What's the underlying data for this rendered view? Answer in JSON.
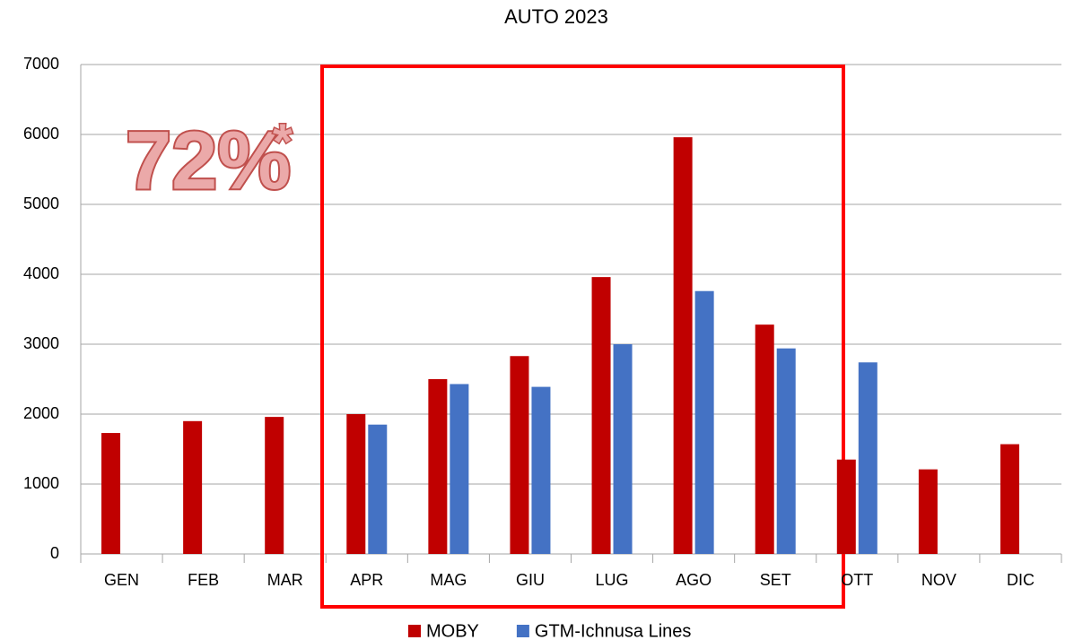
{
  "chart_data": {
    "type": "bar",
    "title": "AUTO 2023",
    "categories": [
      "GEN",
      "FEB",
      "MAR",
      "APR",
      "MAG",
      "GIU",
      "LUG",
      "AGO",
      "SET",
      "OTT",
      "NOV",
      "DIC"
    ],
    "series": [
      {
        "name": "MOBY",
        "color": "#c00000",
        "values": [
          1730,
          1900,
          1960,
          2000,
          2500,
          2830,
          3960,
          5960,
          3280,
          1350,
          1210,
          1570
        ]
      },
      {
        "name": "GTM-Ichnusa Lines",
        "color": "#4472c4",
        "values": [
          null,
          null,
          null,
          1850,
          2430,
          2390,
          3000,
          3760,
          2940,
          2740,
          null,
          null
        ]
      }
    ],
    "ylim": [
      0,
      7000
    ],
    "yticks": [
      0,
      1000,
      2000,
      3000,
      4000,
      5000,
      6000,
      7000
    ],
    "grid": true,
    "legend": "bottom",
    "annotation": "72%",
    "annotation_note": "*"
  }
}
